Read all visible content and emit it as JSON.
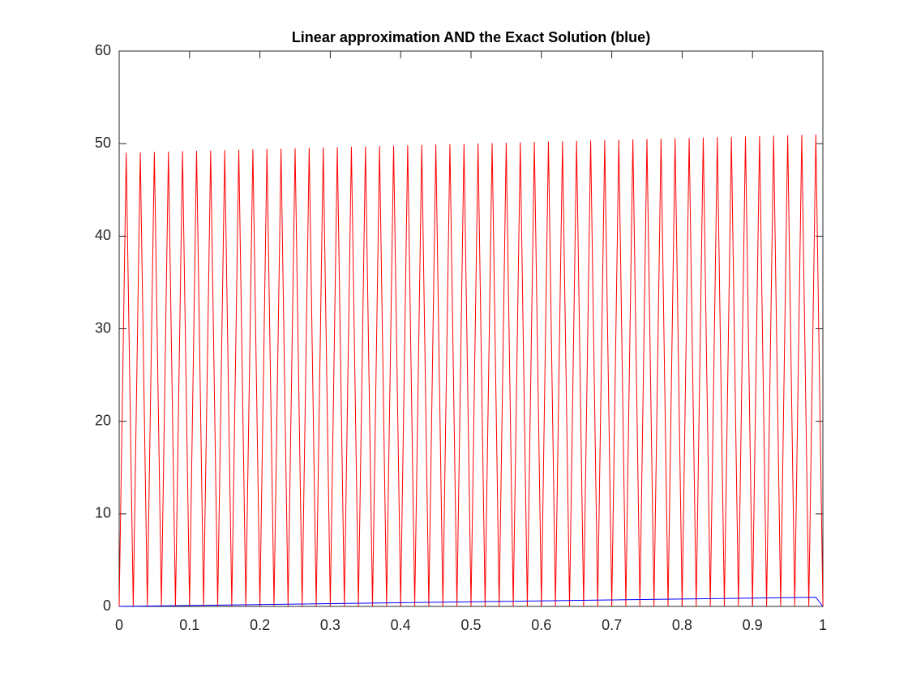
{
  "chart_data": {
    "type": "line",
    "title": "Linear approximation AND the Exact Solution (blue)",
    "xlim": [
      0,
      1
    ],
    "xticks": [
      0,
      0.1,
      0.2,
      0.3,
      0.4,
      0.5,
      0.6,
      0.7,
      0.8,
      0.9,
      1
    ],
    "ylim": [
      0,
      60
    ],
    "yticks": [
      0,
      10,
      20,
      30,
      40,
      50,
      60
    ],
    "grid": false,
    "series": [
      {
        "color": "#ff0000",
        "x": [
          0,
          0.01,
          0.02,
          0.03,
          0.04,
          0.05,
          0.06,
          0.07,
          0.08,
          0.09,
          0.1,
          0.11,
          0.12,
          0.13,
          0.14,
          0.15,
          0.16,
          0.17,
          0.18,
          0.19,
          0.2,
          0.21,
          0.22,
          0.23,
          0.24,
          0.25,
          0.26,
          0.27,
          0.28,
          0.29,
          0.3,
          0.31,
          0.32,
          0.33,
          0.34,
          0.35,
          0.36,
          0.37,
          0.38,
          0.39,
          0.4,
          0.41,
          0.42,
          0.43,
          0.44,
          0.45,
          0.46,
          0.47,
          0.48,
          0.49,
          0.5,
          0.51,
          0.52,
          0.53,
          0.54,
          0.55,
          0.56,
          0.57,
          0.58,
          0.59,
          0.6,
          0.61,
          0.62,
          0.63,
          0.64,
          0.65,
          0.66,
          0.67,
          0.68,
          0.69,
          0.7,
          0.71,
          0.72,
          0.73,
          0.74,
          0.75,
          0.76,
          0.77,
          0.78,
          0.79,
          0.8,
          0.81,
          0.82,
          0.83,
          0.84,
          0.85,
          0.86,
          0.87,
          0.88,
          0.89,
          0.9,
          0.91,
          0.92,
          0.93,
          0.94,
          0.95,
          0.96,
          0.97,
          0.98,
          0.99,
          1
        ],
        "values": [
          0,
          49.02,
          0,
          49.06,
          0,
          49.1,
          0,
          49.14,
          0,
          49.18,
          0,
          49.22,
          0,
          49.26,
          0,
          49.3,
          0,
          49.34,
          0,
          49.38,
          0,
          49.42,
          0,
          49.46,
          0,
          49.5,
          0,
          49.54,
          0,
          49.58,
          0,
          49.62,
          0,
          49.66,
          0,
          49.7,
          0,
          49.74,
          0,
          49.78,
          0,
          49.82,
          0,
          49.86,
          0,
          49.9,
          0,
          49.94,
          0,
          49.98,
          0,
          50.02,
          0,
          50.06,
          0,
          50.1,
          0,
          50.14,
          0,
          50.18,
          0,
          50.22,
          0,
          50.26,
          0,
          50.3,
          0,
          50.34,
          0,
          50.38,
          0,
          50.42,
          0,
          50.46,
          0,
          50.5,
          0,
          50.54,
          0,
          50.58,
          0,
          50.62,
          0,
          50.66,
          0,
          50.7,
          0,
          50.74,
          0,
          50.78,
          0,
          50.82,
          0,
          50.86,
          0,
          50.9,
          0,
          50.94,
          0,
          50.98,
          0
        ]
      },
      {
        "color": "#0000ff",
        "x": [
          0,
          0.99,
          1
        ],
        "values": [
          0,
          0.99,
          0
        ]
      }
    ]
  }
}
